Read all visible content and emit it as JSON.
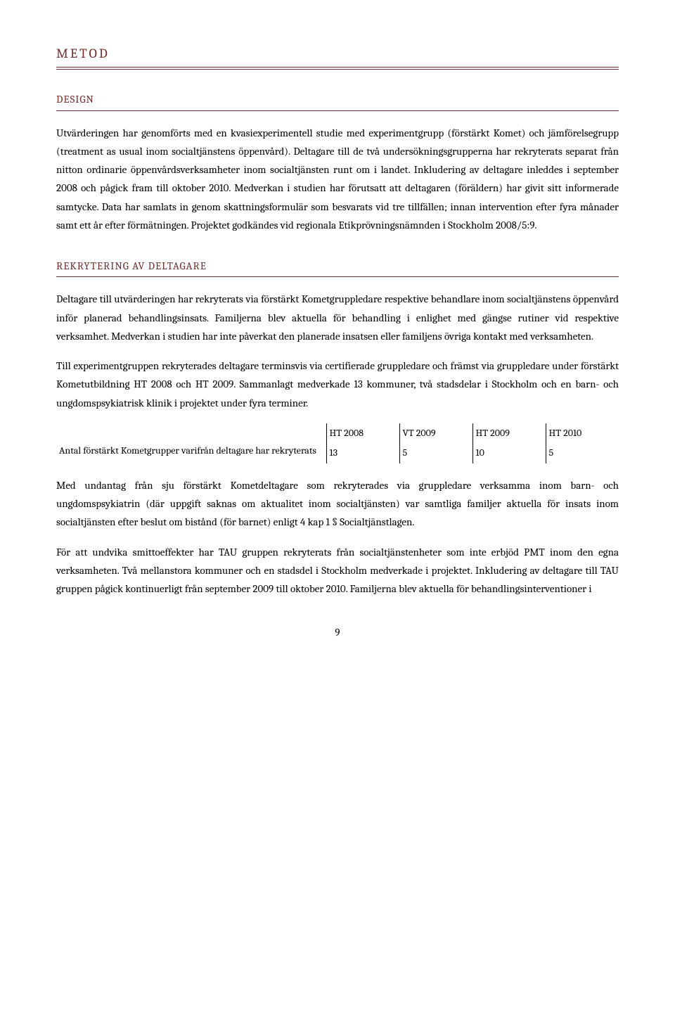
{
  "headings": {
    "h1": "METOD",
    "h2a": "DESIGN",
    "h2b": "REKRYTERING AV DELTAGARE"
  },
  "paragraphs": {
    "p1": "Utvärderingen har genomförts med en kvasiexperimentell studie med experimentgrupp (förstärkt Komet) och jämförelsegrupp (treatment as usual inom socialtjänstens öppenvård). Deltagare till de två undersökningsgrupperna har rekryterats separat från nitton ordinarie öppenvårdsverksamheter inom socialtjänsten runt om i landet. Inkludering av deltagare inleddes i september 2008 och pågick fram till oktober 2010. Medverkan i studien har förutsatt att deltagaren (föräldern) har givit sitt informerade samtycke. Data har samlats in genom skattningsformulär som besvarats vid tre tillfällen; innan intervention efter fyra månader samt ett år efter förmätningen. Projektet godkändes vid regionala Etikprövningsnämnden i Stockholm 2008/5:9.",
    "p2": "Deltagare till utvärderingen har rekryterats via förstärkt Kometgruppledare respektive behandlare inom socialtjänstens öppenvård inför planerad behandlingsinsats. Familjerna blev aktuella för behandling i enlighet med gängse rutiner vid respektive verksamhet. Medverkan i studien har inte påverkat den planerade insatsen eller familjens övriga kontakt med verksamheten.",
    "p3": "Till experimentgruppen rekryterades deltagare terminsvis via certifierade gruppledare och främst via gruppledare under förstärkt Kometutbildning HT 2008 och HT 2009. Sammanlagt medverkade 13 kommuner, två stadsdelar i Stockholm och en barn- och ungdomspsykiatrisk klinik i projektet under fyra terminer.",
    "p4": "Med undantag från sju förstärkt Kometdeltagare som rekryterades via gruppledare verksamma inom barn- och ungdomspsykiatrin (där uppgift saknas om aktualitet inom socialtjänsten) var samtliga familjer aktuella för insats inom socialtjänsten efter beslut om bistånd (för barnet) enligt 4 kap 1 § Socialtjänstlagen.",
    "p5": "För att undvika smittoeffekter har TAU gruppen rekryterats från socialtjänstenheter som inte erbjöd PMT inom den egna verksamheten. Två mellanstora kommuner och en stadsdel i Stockholm medverkade i projektet. Inkludering av deltagare till TAU gruppen pågick kontinuerligt från september 2009 till oktober 2010. Familjerna blev aktuella för behandlingsinterventioner i"
  },
  "table": {
    "columns": [
      "HT 2008",
      "VT 2009",
      "HT 2009",
      "HT 2010"
    ],
    "row_label": "Antal förstärkt Kometgrupper varifrån deltagare har rekryterats",
    "values": [
      "13",
      "5",
      "10",
      "5"
    ]
  },
  "page_number": "9",
  "colors": {
    "heading": "#722e2e",
    "text": "#000000",
    "background": "#ffffff"
  }
}
